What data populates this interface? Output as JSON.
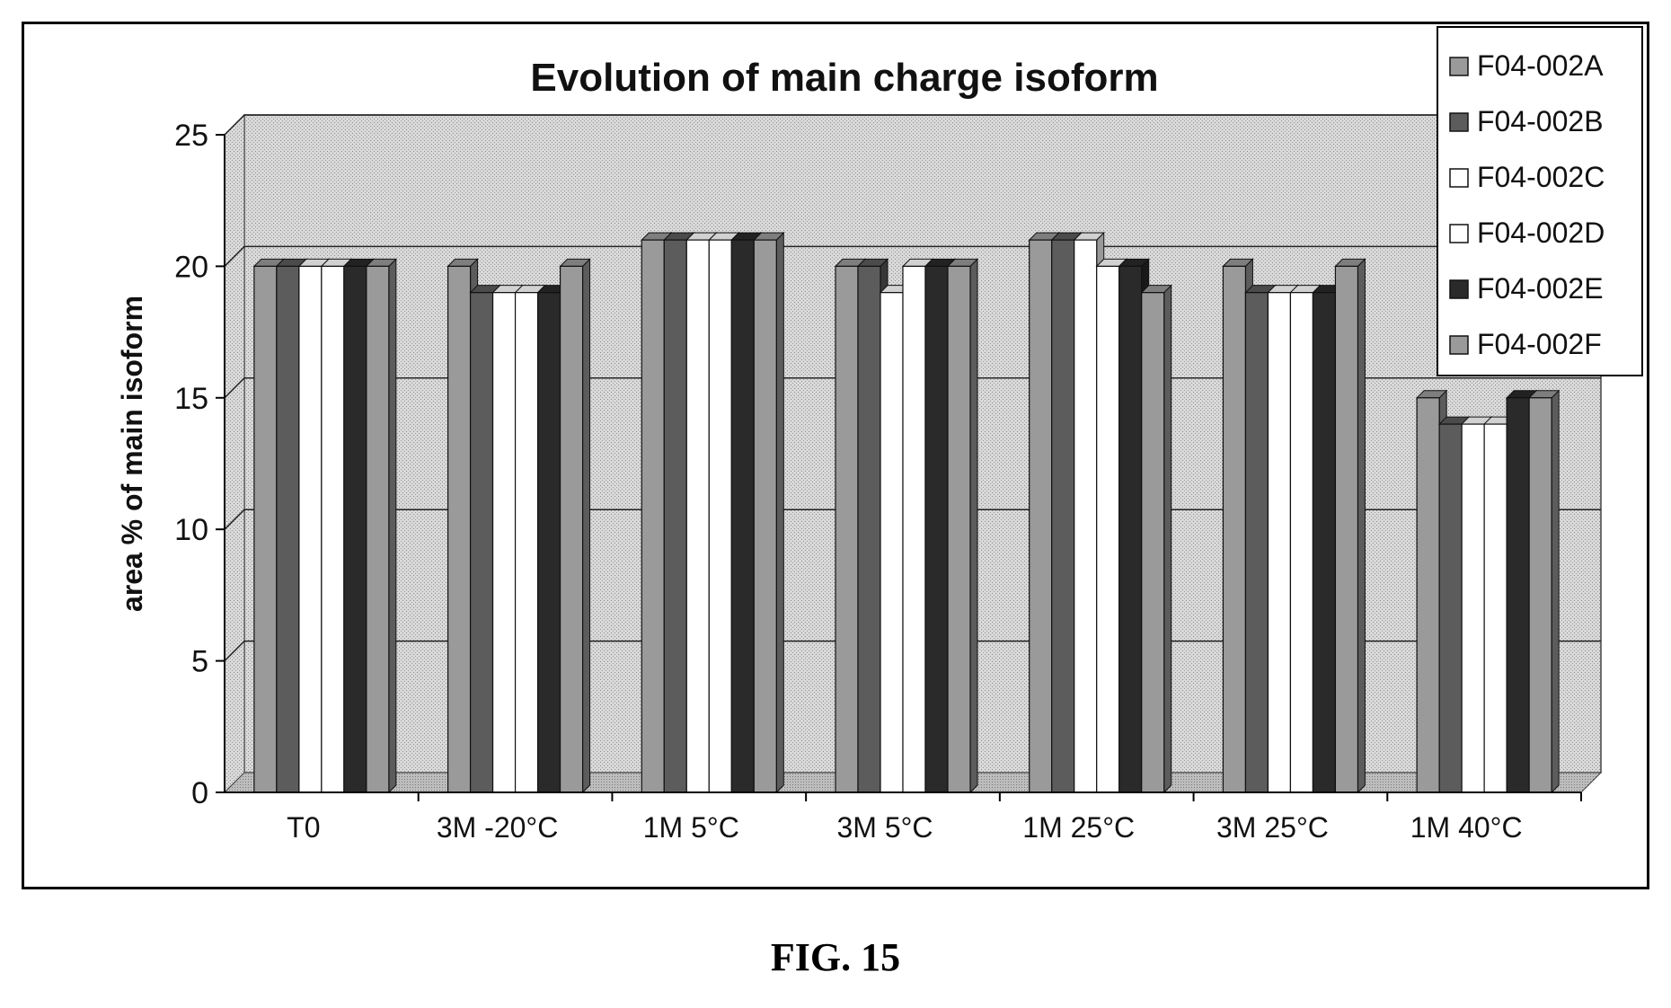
{
  "figure_label": "FIG. 15",
  "chart_data": {
    "type": "bar",
    "title": "Evolution of main charge isoform",
    "xlabel": "",
    "ylabel": "area % of main isoform",
    "ylim": [
      0,
      25
    ],
    "yticks": [
      0,
      5,
      10,
      15,
      20,
      25
    ],
    "grid": true,
    "legend_position": "top-right",
    "categories": [
      "T0",
      "3M -20°C",
      "1M 5°C",
      "3M 5°C",
      "1M 25°C",
      "3M 25°C",
      "1M 40°C"
    ],
    "series": [
      {
        "name": "F04-002A",
        "color": "#9a9a9a",
        "values": [
          20,
          20,
          21,
          20,
          21,
          20,
          15
        ]
      },
      {
        "name": "F04-002B",
        "color": "#5c5c5c",
        "values": [
          20,
          19,
          21,
          20,
          21,
          19,
          14
        ]
      },
      {
        "name": "F04-002C",
        "color": "#ffffff",
        "values": [
          20,
          19,
          21,
          19,
          21,
          19,
          14
        ]
      },
      {
        "name": "F04-002D",
        "color": "#ffffff",
        "values": [
          20,
          19,
          21,
          20,
          20,
          19,
          14
        ]
      },
      {
        "name": "F04-002E",
        "color": "#2a2a2a",
        "values": [
          20,
          19,
          21,
          20,
          20,
          19,
          15
        ]
      },
      {
        "name": "F04-002F",
        "color": "#9a9a9a",
        "values": [
          20,
          20,
          21,
          20,
          19,
          20,
          15
        ]
      }
    ]
  }
}
